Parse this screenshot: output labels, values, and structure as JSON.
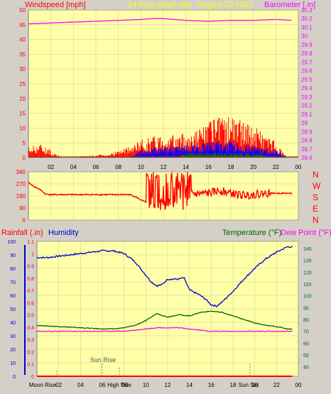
{
  "header": {
    "left_title": "Windspeed [mph]",
    "center_title": "24 hour graph day - August 20 2022",
    "right_title": "Barometer [.in]"
  },
  "colors": {
    "background": "#d4d0c8",
    "plot_area": "#ffffa8",
    "wind_speed": "#ff0000",
    "wind_gust": "#0000ff",
    "wind_avg": "#008000",
    "barometer": "#ff00ff",
    "humidity": "#0000cc",
    "temperature": "#006400",
    "dew_point": "#ff00ff",
    "rain": "#ff0000",
    "axis_text": "#000000"
  },
  "chart_data": [
    {
      "type": "bar",
      "title": "24 hour graph day - August 20 2022",
      "ylabel_left": "Windspeed [mph]",
      "ylabel_right": "Barometer [.in]",
      "grid": true,
      "x_ticks": [
        "02",
        "04",
        "06",
        "08",
        "10",
        "12",
        "14",
        "16",
        "18",
        "20",
        "22",
        "00"
      ],
      "ylim_left": [
        0,
        50
      ],
      "y_ticks_left": [
        "0",
        "5",
        "10",
        "15",
        "20",
        "25",
        "30",
        "35",
        "40",
        "45",
        "50"
      ],
      "ylim_right": [
        28.6,
        30.3
      ],
      "y_ticks_right": [
        "28.6",
        "28.7",
        "28.8",
        "28.9",
        "29",
        "29.1",
        "29.2",
        "29.3",
        "29.4",
        "29.5",
        "29.6",
        "29.7",
        "29.8",
        "29.9",
        "30",
        "30.1",
        "30.2",
        "30.3"
      ],
      "series": [
        {
          "name": "",
          "kind": "barometer_line",
          "x": [
            0,
            2,
            4,
            6,
            8,
            10,
            11,
            12,
            14,
            16,
            18,
            20,
            22,
            23.5
          ],
          "y": [
            30.14,
            30.15,
            30.16,
            30.17,
            30.18,
            30.19,
            30.2,
            30.2,
            30.18,
            30.17,
            30.18,
            30.18,
            30.19,
            30.18
          ]
        },
        {
          "name": "",
          "kind": "wind_gust_profile",
          "x": [
            0,
            1,
            3,
            7,
            9,
            10,
            11,
            12,
            13,
            14,
            15,
            16,
            17,
            18,
            19,
            20,
            21,
            22,
            23
          ],
          "y": [
            3,
            4,
            0,
            1,
            3,
            5,
            6,
            7,
            6,
            7,
            8,
            10,
            11,
            12,
            10,
            9,
            7,
            4,
            0
          ]
        },
        {
          "name": "",
          "kind": "wind_speed_profile",
          "x": [
            0,
            9,
            10,
            12,
            14,
            16,
            18,
            20,
            22,
            23
          ],
          "y": [
            0,
            0,
            2,
            3,
            3,
            4,
            4,
            3,
            2,
            0
          ]
        },
        {
          "name": "",
          "kind": "wind_avg_profile",
          "x": [
            0,
            13,
            14,
            16,
            18,
            20,
            22,
            23
          ],
          "y": [
            0,
            0,
            1,
            1,
            1,
            1,
            0,
            0
          ]
        }
      ]
    },
    {
      "type": "line",
      "ylabel_right": [
        "N",
        "W",
        "S",
        "E",
        "N"
      ],
      "x_ticks": [
        "02",
        "04",
        "06",
        "08",
        "10",
        "12",
        "14",
        "16",
        "18",
        "20",
        "22",
        "00"
      ],
      "ylim": [
        0,
        360
      ],
      "y_ticks": [
        "0",
        "90",
        "180",
        "270",
        "360"
      ],
      "series": [
        {
          "name": "",
          "kind": "wind_direction",
          "x": [
            0,
            0.5,
            1,
            1.5,
            2,
            4,
            6,
            8,
            9,
            9.5,
            10,
            10.5,
            11,
            12,
            13,
            14,
            15,
            16,
            17,
            18,
            19,
            20,
            21,
            22,
            23.5
          ],
          "y": [
            280,
            250,
            230,
            195,
            190,
            190,
            190,
            190,
            190,
            175,
            150,
            130,
            190,
            190,
            185,
            200,
            195,
            200,
            220,
            200,
            185,
            190,
            200,
            200,
            200
          ]
        }
      ]
    },
    {
      "type": "line",
      "ylabel_left_1": "Rainfall (.in)",
      "ylabel_left_2": "Humidity",
      "ylabel_right_1": "Temperature (°F)",
      "ylabel_right_2": "Dew Point (°F)",
      "x_ticks": [
        "02",
        "04",
        "06",
        "08",
        "10",
        "12",
        "14",
        "16",
        "18",
        "20",
        "22",
        "00"
      ],
      "y_rain_ticks": [
        "0",
        "0.1",
        "0.2",
        "0.3",
        "0.4",
        "0.5",
        "0.6",
        "0.7",
        "0.8",
        "0.9",
        "1",
        "1.1"
      ],
      "y_rain_lim": [
        0,
        1.1
      ],
      "y_hum_ticks": [
        "0",
        "10",
        "20",
        "30",
        "40",
        "50",
        "60",
        "70",
        "80",
        "90",
        "100"
      ],
      "y_hum_lim": [
        0,
        100
      ],
      "y_temp_ticks": [
        "40",
        "50",
        "60",
        "70",
        "80",
        "90",
        "100",
        "110",
        "120",
        "130",
        "140"
      ],
      "y_temp_lim": [
        32,
        146
      ],
      "annotations": {
        "sun_rise": "Sun Rise",
        "moon_rise": "Moon Rise",
        "high_tide": "High Tide",
        "sun_set": "Sun Set"
      },
      "series": [
        {
          "name": "Humidity",
          "axis": "humidity",
          "x": [
            0,
            1,
            2,
            3,
            4,
            5,
            6,
            7,
            8,
            9,
            10,
            10.5,
            11,
            11.5,
            12,
            13,
            13.5,
            14,
            15,
            15.5,
            16,
            16.5,
            17,
            18,
            19,
            20,
            21,
            22,
            23,
            23.5
          ],
          "y": [
            88,
            88,
            89,
            90,
            91,
            92,
            93,
            93,
            91,
            85,
            75,
            70,
            67,
            68,
            72,
            72,
            73,
            64,
            60,
            57,
            53,
            52,
            55,
            63,
            72,
            80,
            87,
            92,
            96,
            96
          ]
        },
        {
          "name": "Temperature (°F)",
          "axis": "temperature",
          "x": [
            0,
            2,
            4,
            6,
            7,
            8,
            9,
            10,
            11,
            12,
            13,
            14,
            15,
            16,
            17,
            18,
            19,
            20,
            21,
            22,
            23,
            23.5
          ],
          "y": [
            75,
            74,
            73,
            72,
            72,
            73,
            75,
            79,
            85,
            82,
            84,
            83,
            86,
            87,
            86,
            83,
            80,
            77,
            75,
            74,
            72,
            72
          ]
        },
        {
          "name": "Dew Point (°F)",
          "axis": "temperature",
          "x": [
            0,
            2,
            4,
            6,
            8,
            10,
            11,
            12,
            13,
            14,
            15,
            16,
            18,
            20,
            22,
            23.5
          ],
          "y": [
            70,
            70,
            70,
            70,
            70,
            72,
            73,
            73,
            73,
            72,
            71,
            70,
            70,
            70,
            70,
            70
          ]
        },
        {
          "name": "Rainfall (.in)",
          "axis": "rain",
          "x": [
            0,
            23.5
          ],
          "y": [
            0,
            0
          ]
        }
      ]
    }
  ]
}
